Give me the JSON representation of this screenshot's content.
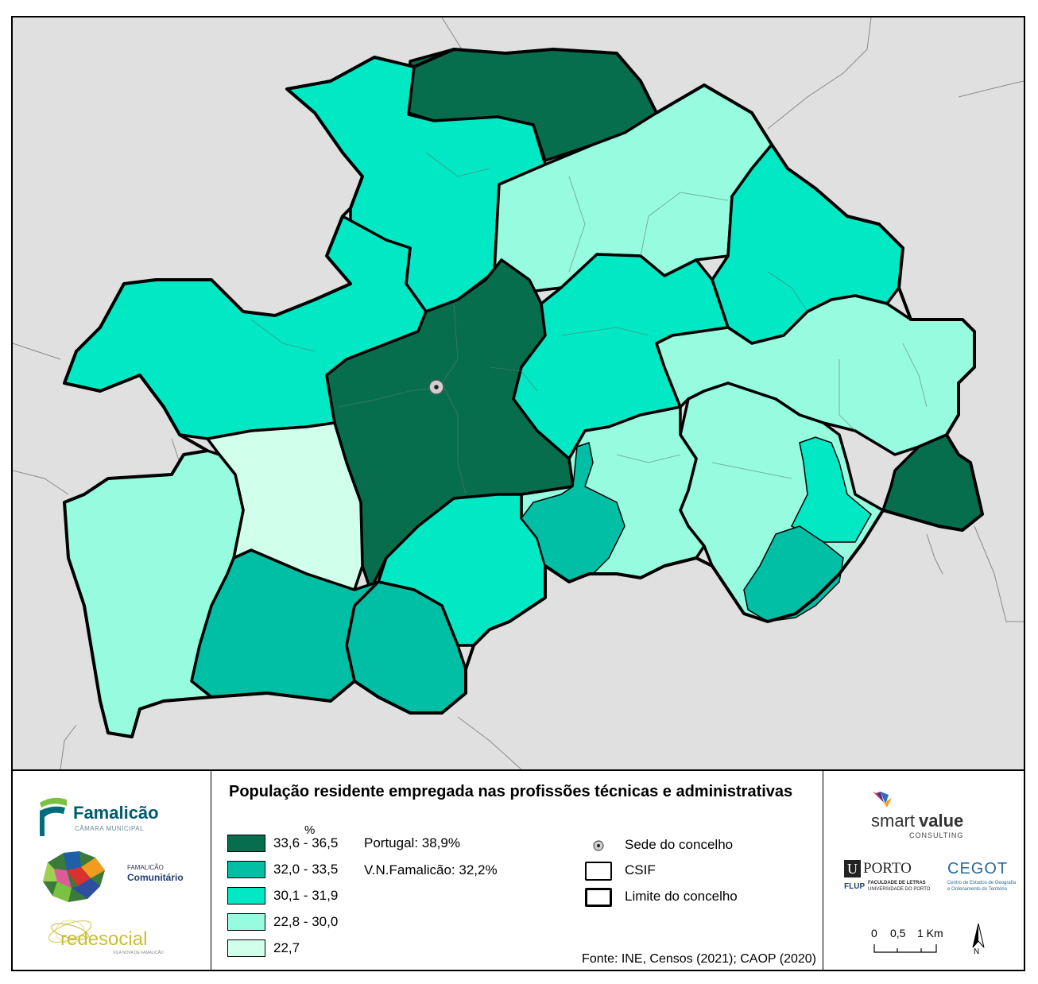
{
  "legend": {
    "title": "População residente empregada nas profissões  técnicas e administrativas",
    "unit": "%",
    "classes": [
      {
        "label": "33,6 - 36,5",
        "color": "#076e4d"
      },
      {
        "label": "32,0 - 33,5",
        "color": "#00bfa4"
      },
      {
        "label": "30,1 - 31,9",
        "color": "#00e8c4"
      },
      {
        "label": "22,8 - 30,0",
        "color": "#96fbdf"
      },
      {
        "label": "22,7",
        "color": "#d0ffeb"
      }
    ],
    "stats": [
      {
        "label": "Portugal: 38,9%"
      },
      {
        "label": "V.N.Famalicão: 32,2%"
      }
    ],
    "symbols": {
      "seat": "Sede do concelho",
      "csif": "CSIF",
      "boundary": "Limite do concelho"
    },
    "source": "Fonte: INE, Censos (2021); CAOP (2020)"
  },
  "logos": {
    "famalicao": {
      "name": "Famalicão",
      "sub": "CÂMARA MUNICIPAL",
      "icon": "famalicao-logo-icon"
    },
    "comunitario": {
      "line1": "FAMALICÃO",
      "line2": "Comunitário",
      "icon": "mosaic-map-icon"
    },
    "redesocial": {
      "name": "redesocial",
      "sub": "VILA NOVA DE FAMALICÃO",
      "icon": "redesocial-swirl-icon"
    },
    "smartvalue": {
      "name_a": "smart",
      "name_b": "value",
      "sub": "CONSULTING",
      "icon": "smartvalue-bird-icon"
    },
    "uporto": {
      "u": "U",
      "porto": "PORTO",
      "flup": "FLUP",
      "line1": "FACULDADE DE LETRAS",
      "line2": "UNIVERSIDADE DO PORTO"
    },
    "cegot": {
      "name": "CEGOT",
      "line1": "Centro de Estudos de Geografia",
      "line2": "e Ordenamento do Território"
    }
  },
  "scalebar": {
    "ticks": [
      "0",
      "0,5",
      "1 Km"
    ]
  },
  "north": {
    "label": "N",
    "icon": "north-arrow-icon"
  },
  "colors": {
    "background": "#e0e0e0",
    "boundary": "#000000"
  }
}
